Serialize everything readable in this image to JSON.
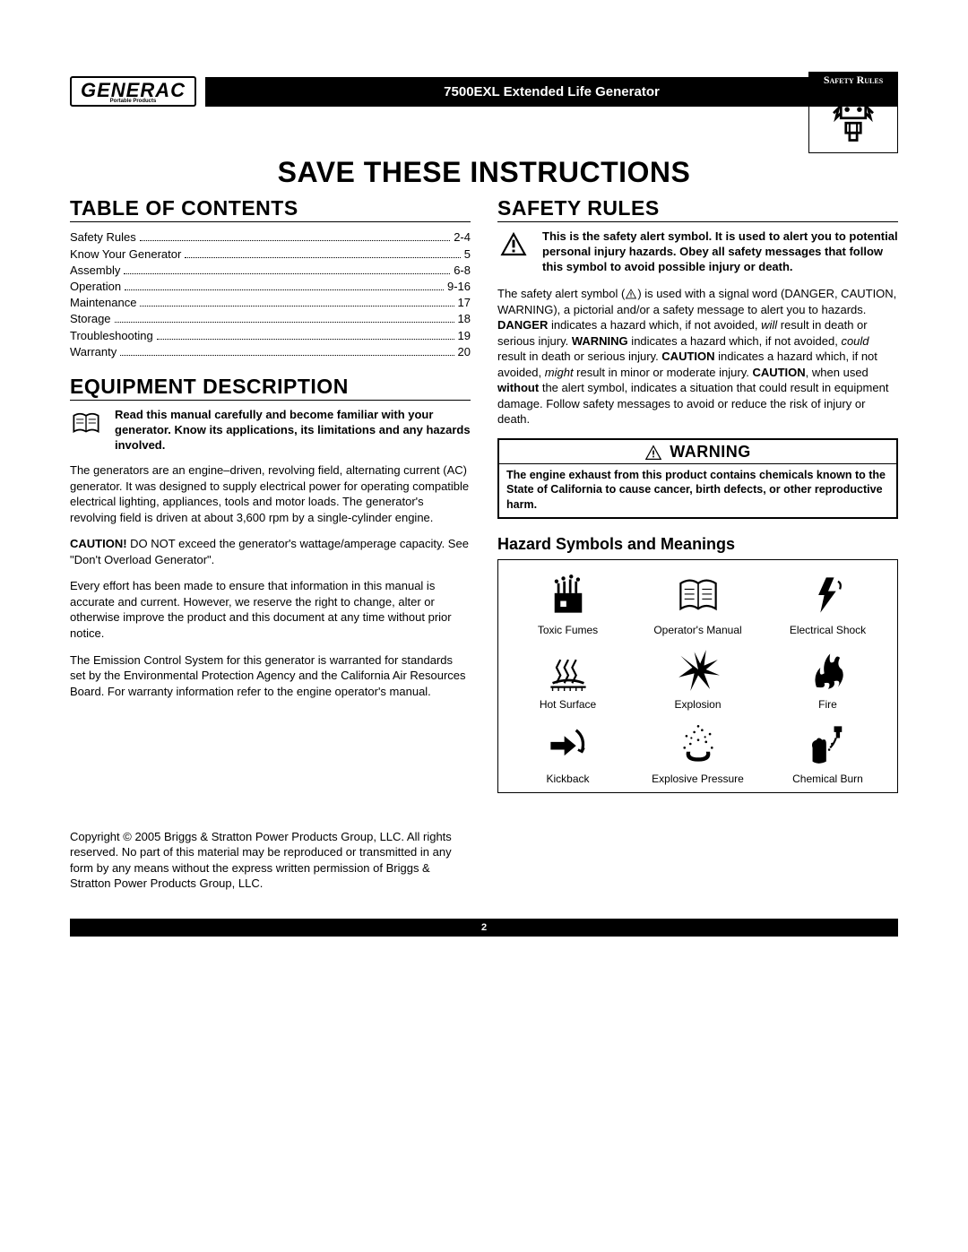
{
  "header": {
    "logo_text": "GENERAC",
    "logo_sub": "Portable Products",
    "title": "7500EXL Extended Life Generator",
    "badge_label": "Safety Rules"
  },
  "main_heading": "Save These Instructions",
  "toc": {
    "heading": "Table of Contents",
    "items": [
      {
        "label": "Safety Rules",
        "page": "2-4"
      },
      {
        "label": "Know Your Generator",
        "page": "5"
      },
      {
        "label": "Assembly",
        "page": "6-8"
      },
      {
        "label": "Operation",
        "page": "9-16"
      },
      {
        "label": "Maintenance",
        "page": "17"
      },
      {
        "label": "Storage",
        "page": "18"
      },
      {
        "label": "Troubleshooting",
        "page": "19"
      },
      {
        "label": "Warranty",
        "page": "20"
      }
    ]
  },
  "equipment": {
    "heading": "Equipment Description",
    "intro": "Read this manual carefully and become familiar with your generator. Know its applications, its limitations and any hazards involved.",
    "p1": "The generators are an engine–driven, revolving field, alternating current (AC) generator. It was designed to supply electrical power for operating compatible electrical lighting, appliances, tools and motor loads. The generator's revolving field is driven at about 3,600 rpm by a single-cylinder engine.",
    "p2_pre": "CAUTION!",
    "p2": " DO NOT exceed the generator's wattage/amperage capacity. See \"Don't Overload Generator\".",
    "p3": "Every effort has been made to ensure that information in this manual is accurate and current. However, we reserve the right to change, alter or otherwise improve the product and this document at any time without prior notice.",
    "p4": "The Emission Control System for this generator is warranted for standards set by the Environmental Protection Agency and the California Air Resources Board. For warranty information refer to the engine operator's manual."
  },
  "safety": {
    "heading": "Safety Rules",
    "alert_intro": "This is the safety alert symbol. It is used to alert you to potential personal injury hazards. Obey all safety messages that follow this symbol to avoid possible injury or death.",
    "explain_parts": [
      {
        "t": "The safety alert symbol (",
        "b": false,
        "i": false
      },
      {
        "t": "ICON",
        "b": false,
        "i": false
      },
      {
        "t": ") is used with a signal word (DANGER, CAUTION, WARNING), a pictorial and/or a safety message to alert you to hazards. ",
        "b": false,
        "i": false
      },
      {
        "t": "DANGER",
        "b": true,
        "i": false
      },
      {
        "t": " indicates a hazard which, if not avoided, ",
        "b": false,
        "i": false
      },
      {
        "t": "will",
        "b": false,
        "i": true
      },
      {
        "t": " result in death or serious injury. ",
        "b": false,
        "i": false
      },
      {
        "t": "WARNING",
        "b": true,
        "i": false
      },
      {
        "t": " indicates a hazard which, if not avoided, ",
        "b": false,
        "i": false
      },
      {
        "t": "could",
        "b": false,
        "i": true
      },
      {
        "t": " result in death or serious injury. ",
        "b": false,
        "i": false
      },
      {
        "t": "CAUTION",
        "b": true,
        "i": false
      },
      {
        "t": " indicates a hazard which, if not avoided, ",
        "b": false,
        "i": false
      },
      {
        "t": "might",
        "b": false,
        "i": true
      },
      {
        "t": " result in minor or moderate injury. ",
        "b": false,
        "i": false
      },
      {
        "t": "CAUTION",
        "b": true,
        "i": false
      },
      {
        "t": ", when used ",
        "b": false,
        "i": false
      },
      {
        "t": "without",
        "b": true,
        "i": false
      },
      {
        "t": " the alert symbol, indicates a situation that could result in equipment damage. Follow safety messages to avoid or reduce the risk of injury or death.",
        "b": false,
        "i": false
      }
    ],
    "warning_label": "WARNING",
    "warning_body": "The engine exhaust from this product contains chemicals known to the State of California to cause cancer, birth defects, or other reproductive harm.",
    "hazard_heading": "Hazard Symbols and Meanings",
    "hazards": [
      {
        "label": "Toxic Fumes",
        "icon": "fumes"
      },
      {
        "label": "Operator's Manual",
        "icon": "manual"
      },
      {
        "label": "Electrical Shock",
        "icon": "shock"
      },
      {
        "label": "Hot Surface",
        "icon": "hot"
      },
      {
        "label": "Explosion",
        "icon": "explosion"
      },
      {
        "label": "Fire",
        "icon": "fire"
      },
      {
        "label": "Kickback",
        "icon": "kickback"
      },
      {
        "label": "Explosive Pressure",
        "icon": "pressure"
      },
      {
        "label": "Chemical Burn",
        "icon": "chemburn"
      }
    ]
  },
  "copyright": "Copyright © 2005 Briggs & Stratton Power Products Group, LLC.  All rights reserved.  No part of this material may be reproduced or transmitted in any form by any means without the express written permission of Briggs & Stratton Power Products Group, LLC.",
  "page_number": "2"
}
